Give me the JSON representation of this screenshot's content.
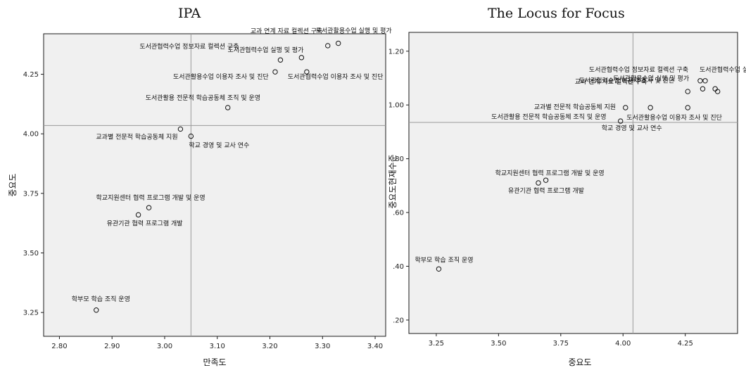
{
  "chart_data": [
    {
      "type": "scatter",
      "title": "IPA",
      "xlabel": "만족도",
      "ylabel": "중요도",
      "xlim": [
        2.77,
        3.42
      ],
      "ylim": [
        3.15,
        4.42
      ],
      "xticks": [
        "2.80",
        "2.90",
        "3.00",
        "3.10",
        "3.20",
        "3.30",
        "3.40"
      ],
      "yticks": [
        "3.25",
        "3.50",
        "3.75",
        "4.00",
        "4.25"
      ],
      "reference_lines": {
        "x": 3.05,
        "y": 4.035
      },
      "grid": false,
      "points": [
        {
          "x": 3.33,
          "y": 4.38,
          "label": "도서관활용수업 실행 및 평가"
        },
        {
          "x": 3.31,
          "y": 4.37,
          "label": "교과 연계 자료 컬렉션 구축"
        },
        {
          "x": 3.26,
          "y": 4.32,
          "label": "도서관협력수업 정보자료 컬렉션 구축"
        },
        {
          "x": 3.22,
          "y": 4.31,
          "label": "도서관협력수업 실행 및 평가"
        },
        {
          "x": 3.21,
          "y": 4.26,
          "label": "도서관활용수업 이용자 조사 및 진단"
        },
        {
          "x": 3.27,
          "y": 4.26,
          "label": "도서관협력수업 이용자 조사 및 진단"
        },
        {
          "x": 3.12,
          "y": 4.11,
          "label": "도서관활용 전문적 학습공동체 조직 및 운영"
        },
        {
          "x": 3.03,
          "y": 4.02,
          "label": "교과별 전문적 학습공동체 지원"
        },
        {
          "x": 3.05,
          "y": 3.99,
          "label": "학교 경영 및 교사 연수"
        },
        {
          "x": 2.97,
          "y": 3.69,
          "label": "학교지원센터 협력 프로그램 개발 및 운영"
        },
        {
          "x": 2.95,
          "y": 3.66,
          "label": "유관기관 협력 프로그램 개발"
        },
        {
          "x": 2.87,
          "y": 3.26,
          "label": "학부모 학습 조직 운영"
        }
      ]
    },
    {
      "type": "scatter",
      "title": "The Locus for Focus",
      "xlabel": "중요도",
      "ylabel": "중요도현재수준",
      "xlim": [
        3.14,
        4.46
      ],
      "ylim": [
        0.15,
        1.27
      ],
      "xticks": [
        "3.25",
        "3.50",
        "3.75",
        "4.00",
        "4.25"
      ],
      "yticks": [
        ".20",
        ".40",
        ".60",
        ".80",
        "1.00",
        "1.20"
      ],
      "reference_lines": {
        "x": 4.04,
        "y": 0.935
      },
      "grid": false,
      "points": [
        {
          "x": 4.33,
          "y": 1.09,
          "label": "도서관협력수업 실행 및 평가"
        },
        {
          "x": 4.31,
          "y": 1.09,
          "label": "도서관협력수업 정보자료 컬렉션 구축"
        },
        {
          "x": 4.32,
          "y": 1.06,
          "label": "도서관협력수업 이용자 조사 및 진단"
        },
        {
          "x": 4.37,
          "y": 1.06,
          "label": "도서관활용수업 실행 및 평가"
        },
        {
          "x": 4.38,
          "y": 1.05,
          "label": "교과 연계 자료 컬렉션 구축"
        },
        {
          "x": 4.26,
          "y": 1.05,
          "label": ""
        },
        {
          "x": 4.01,
          "y": 0.99,
          "label": "교과별 전문적 학습공동체 지원"
        },
        {
          "x": 4.11,
          "y": 0.99,
          "label": "도서관활용 전문적 학습공동체 조직 및 운영"
        },
        {
          "x": 4.26,
          "y": 0.99,
          "label": "도서관활용수업 이용자 조사 및 진단"
        },
        {
          "x": 3.99,
          "y": 0.94,
          "label": "학교 경영 및 교사 연수"
        },
        {
          "x": 3.69,
          "y": 0.72,
          "label": "학교지원센터 협력 프로그램 개발 및 운영"
        },
        {
          "x": 3.66,
          "y": 0.71,
          "label": "유관기관 협력 프로그램 개발"
        },
        {
          "x": 3.26,
          "y": 0.39,
          "label": "학부모 학습 조직 운영"
        }
      ]
    }
  ]
}
